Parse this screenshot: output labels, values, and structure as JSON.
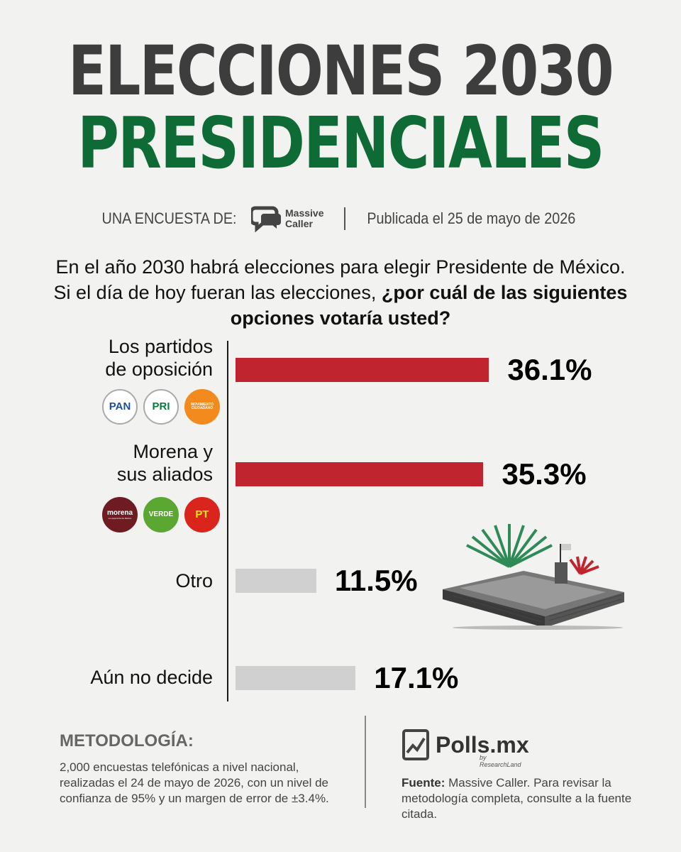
{
  "header": {
    "title_line1": "ELECCIONES 2030",
    "title_line2": "PRESIDENCIALES"
  },
  "byline": {
    "label": "UNA ENCUESTA DE:",
    "brand_line1": "Massive",
    "brand_line2": "Caller",
    "published": "Publicada el 25 de mayo de 2026"
  },
  "question": {
    "line1": "En el año 2030 habrá elecciones para elegir Presidente de México.",
    "line2_plain": "Si el día de hoy fueran las elecciones, ",
    "line2_bold": "¿por cuál de las siguientes opciones votaría usted?"
  },
  "colors": {
    "title_gray": "#3d3d3d",
    "title_green": "#0f6b35",
    "bar_red": "#c0242f",
    "bar_gray": "#d0d0d0"
  },
  "chart_data": {
    "type": "bar",
    "orientation": "horizontal",
    "categories": [
      "Los partidos\nde oposición",
      "Morena y\nsus aliados",
      "Otro",
      "Aún no decide"
    ],
    "values": [
      36.1,
      35.3,
      11.5,
      17.1
    ],
    "value_labels": [
      "36.1%",
      "35.3%",
      "11.5%",
      "17.1%"
    ],
    "bar_colors": [
      "#c0242f",
      "#c0242f",
      "#d0d0d0",
      "#d0d0d0"
    ],
    "grid": false
  },
  "party_logos": {
    "opposition": [
      {
        "text": "PAN",
        "icon": "pan-logo-icon",
        "bg": "#ffffff",
        "fg": "#1b4f9c"
      },
      {
        "text": "PRI",
        "icon": "pri-logo-icon",
        "bg": "#ffffff",
        "fg": "#0b7a3b"
      },
      {
        "text": "MOVIMIENTO CIUDADANO",
        "icon": "mc-logo-icon",
        "bg": "#f28a1d",
        "fg": "#ffffff"
      }
    ],
    "allies": [
      {
        "text": "morena",
        "subtext": "La esperanza de México",
        "icon": "morena-logo-icon",
        "bg": "#6e1b22",
        "fg": "#ffffff"
      },
      {
        "text": "VERDE",
        "icon": "verde-logo-icon",
        "bg": "#5aa832",
        "fg": "#ffffff"
      },
      {
        "text": "PT",
        "icon": "pt-logo-icon",
        "bg": "#d9251c",
        "fg": "#f7e21a"
      }
    ]
  },
  "methodology": {
    "title": "METODOLOGÍA:",
    "text": "2,000 encuestas telefónicas a nivel nacional, realizadas el 24 de mayo de 2026, con un nivel de confianza de 95% y un margen de error de ±3.4%."
  },
  "footer": {
    "brand": "Polls.mx",
    "brand_sub": "by ResearchLand",
    "source_label": "Fuente:",
    "source_text": " Massive Caller. Para revisar la metodología completa, consulte a la fuente citada."
  }
}
